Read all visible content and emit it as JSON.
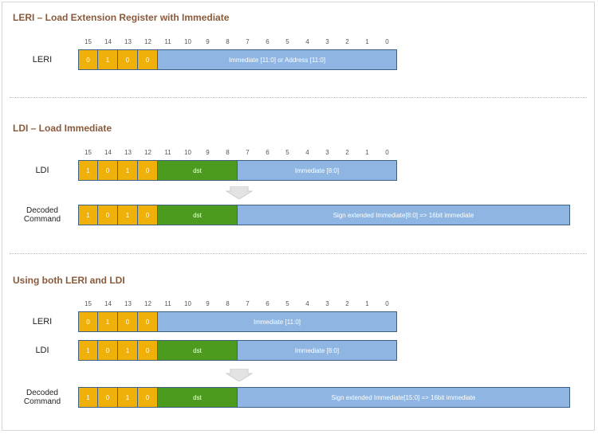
{
  "sections": [
    {
      "title": "LERI – Load Extension Register with Immediate",
      "bit_numbers": [
        "15",
        "14",
        "13",
        "12",
        "11",
        "10",
        "9",
        "8",
        "7",
        "6",
        "5",
        "4",
        "3",
        "2",
        "1",
        "0"
      ],
      "rows": [
        {
          "label": "LERI",
          "fields": [
            {
              "text": "0",
              "type": "opcode"
            },
            {
              "text": "1",
              "type": "opcode"
            },
            {
              "text": "0",
              "type": "opcode"
            },
            {
              "text": "0",
              "type": "opcode"
            },
            {
              "text": "Immediate [11:0] or Address [11:0]",
              "type": "immediate"
            }
          ]
        }
      ]
    },
    {
      "title": "LDI – Load Immediate",
      "bit_numbers": [
        "15",
        "14",
        "13",
        "12",
        "11",
        "10",
        "9",
        "8",
        "7",
        "6",
        "5",
        "4",
        "3",
        "2",
        "1",
        "0"
      ],
      "rows": [
        {
          "label": "LDI",
          "fields": [
            {
              "text": "1",
              "type": "opcode"
            },
            {
              "text": "0",
              "type": "opcode"
            },
            {
              "text": "1",
              "type": "opcode"
            },
            {
              "text": "0",
              "type": "opcode"
            },
            {
              "text": "dst",
              "type": "dst"
            },
            {
              "text": "Immediate [8:0]",
              "type": "immediate"
            }
          ]
        },
        {
          "label_lines": [
            "Decoded",
            "Command"
          ],
          "fields": [
            {
              "text": "1",
              "type": "opcode"
            },
            {
              "text": "0",
              "type": "opcode"
            },
            {
              "text": "1",
              "type": "opcode"
            },
            {
              "text": "0",
              "type": "opcode"
            },
            {
              "text": "dst",
              "type": "dst"
            },
            {
              "text": "Sign extended Immediate[8:0] => 16bit immediate",
              "type": "immediate"
            }
          ]
        }
      ]
    },
    {
      "title": "Using both LERI and LDI",
      "bit_numbers": [
        "15",
        "14",
        "13",
        "12",
        "11",
        "10",
        "9",
        "8",
        "7",
        "6",
        "5",
        "4",
        "3",
        "2",
        "1",
        "0"
      ],
      "rows": [
        {
          "label": "LERI",
          "fields": [
            {
              "text": "0",
              "type": "opcode"
            },
            {
              "text": "1",
              "type": "opcode"
            },
            {
              "text": "0",
              "type": "opcode"
            },
            {
              "text": "0",
              "type": "opcode"
            },
            {
              "text": "Immediate [11:0]",
              "type": "immediate"
            }
          ]
        },
        {
          "label": "LDI",
          "fields": [
            {
              "text": "1",
              "type": "opcode"
            },
            {
              "text": "0",
              "type": "opcode"
            },
            {
              "text": "1",
              "type": "opcode"
            },
            {
              "text": "0",
              "type": "opcode"
            },
            {
              "text": "dst",
              "type": "dst"
            },
            {
              "text": "Immediate [8:0]",
              "type": "immediate"
            }
          ]
        },
        {
          "label_lines": [
            "Decoded",
            "Command"
          ],
          "fields": [
            {
              "text": "1",
              "type": "opcode"
            },
            {
              "text": "0",
              "type": "opcode"
            },
            {
              "text": "1",
              "type": "opcode"
            },
            {
              "text": "0",
              "type": "opcode"
            },
            {
              "text": "dst",
              "type": "dst"
            },
            {
              "text": "Sign extended Immediate[15:0] => 16bit immediate",
              "type": "immediate"
            }
          ]
        }
      ]
    }
  ],
  "colors": {
    "opcode": "#f0b00a",
    "dst": "#4c9a1e",
    "immediate": "#8fb6e2",
    "title": "#8a5a3c"
  }
}
